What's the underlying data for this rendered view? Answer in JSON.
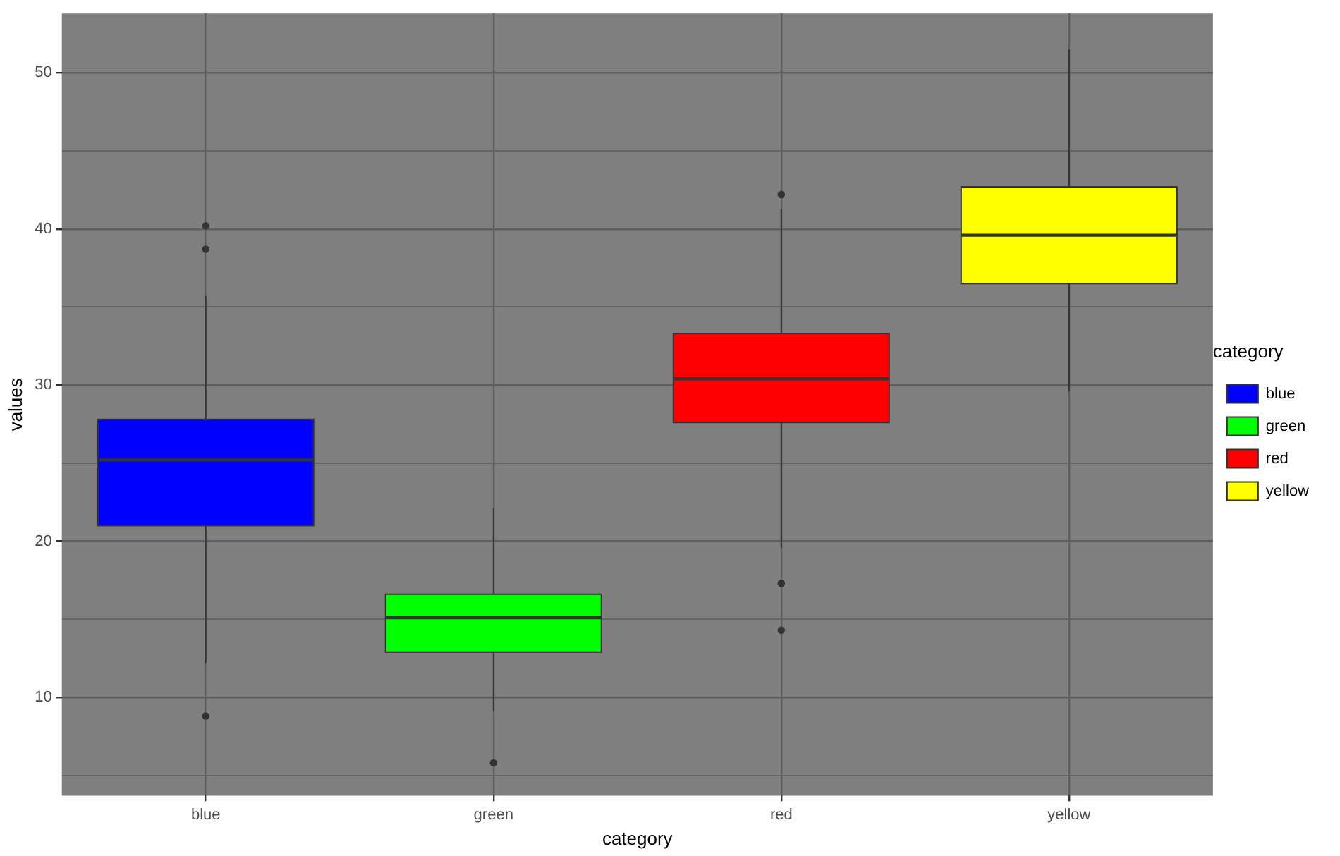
{
  "chart_data": {
    "type": "box",
    "xlabel": "category",
    "ylabel": "values",
    "legend_title": "category",
    "legend": "right",
    "grid": true,
    "categories": [
      "blue",
      "green",
      "red",
      "yellow"
    ],
    "series": [
      {
        "name": "blue",
        "color": "#0000ff",
        "boxes": [
          {
            "low": 12.2,
            "q1": 21.0,
            "median": 25.2,
            "q3": 27.8,
            "high": 35.7,
            "outliers": [
              40.2,
              38.7,
              8.8
            ]
          },
          null,
          null,
          null
        ]
      },
      {
        "name": "green",
        "color": "#00ff00",
        "boxes": [
          null,
          {
            "low": 9.1,
            "q1": 12.9,
            "median": 15.1,
            "q3": 16.6,
            "high": 22.1,
            "outliers": [
              5.8
            ]
          },
          null,
          null
        ]
      },
      {
        "name": "red",
        "color": "#ff0000",
        "boxes": [
          null,
          null,
          {
            "low": 19.6,
            "q1": 27.6,
            "median": 30.4,
            "q3": 33.3,
            "high": 41.3,
            "outliers": [
              42.2,
              17.3,
              14.3
            ]
          },
          null
        ]
      },
      {
        "name": "yellow",
        "color": "#ffff00",
        "boxes": [
          null,
          null,
          null,
          {
            "low": 29.6,
            "q1": 36.5,
            "median": 39.6,
            "q3": 42.7,
            "high": 51.5
          }
        ]
      }
    ],
    "ylim": [
      3.7,
      53.8
    ],
    "yticks": [
      {
        "value": 5,
        "label": null
      },
      10,
      {
        "value": 15,
        "label": null
      },
      20,
      {
        "value": 25,
        "label": null
      },
      30,
      {
        "value": 35,
        "label": null
      },
      40,
      {
        "value": 45,
        "label": null
      },
      50
    ]
  }
}
